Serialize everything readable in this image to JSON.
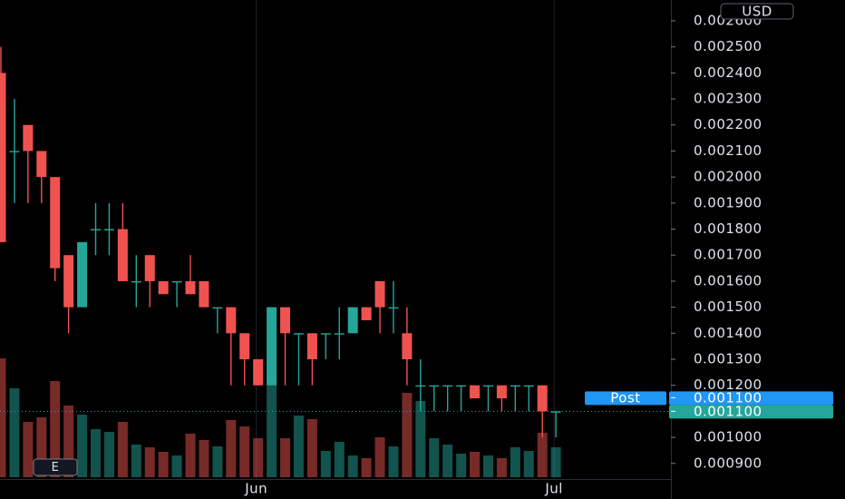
{
  "chart_data": {
    "type": "candlestick",
    "currency": "USD",
    "button": "E",
    "up_color": "#26a69a",
    "down_color": "#ef5350",
    "categories": [
      null,
      null,
      null,
      null,
      null,
      null,
      null,
      null,
      null,
      null,
      null,
      null,
      null,
      null,
      null,
      null,
      null,
      null,
      null,
      "Jun",
      null,
      null,
      null,
      null,
      null,
      null,
      null,
      null,
      null,
      null,
      null,
      null,
      null,
      null,
      null,
      null,
      null,
      null,
      null,
      null,
      null,
      "Jul"
    ],
    "open": [
      0.0024,
      0.0021,
      0.0022,
      0.0021,
      0.002,
      0.0017,
      0.0015,
      0.0018,
      0.0018,
      0.0018,
      0.0016,
      0.0017,
      0.0016,
      0.0016,
      0.0016,
      0.0016,
      0.0015,
      0.0015,
      0.0014,
      0.0013,
      0.0012,
      0.0015,
      0.0014,
      0.0014,
      0.0014,
      0.0014,
      0.0014,
      0.0015,
      0.0016,
      0.0015,
      0.0014,
      0.0012,
      0.0012,
      0.0012,
      0.0012,
      0.0012,
      0.0012,
      0.0012,
      0.0012,
      0.0012,
      0.0012,
      0.0011
    ],
    "high": [
      0.0025,
      0.0023,
      0.0022,
      0.0021,
      0.002,
      0.0017,
      0.00175,
      0.0019,
      0.0019,
      0.0019,
      0.0017,
      0.0017,
      0.0016,
      0.0016,
      0.0017,
      0.0016,
      0.0015,
      0.0015,
      0.0014,
      0.0013,
      0.0015,
      0.0015,
      0.0014,
      0.0014,
      0.0014,
      0.0015,
      0.0015,
      0.0015,
      0.0016,
      0.0016,
      0.0015,
      0.0013,
      0.0012,
      0.0012,
      0.0012,
      0.0012,
      0.0012,
      0.0012,
      0.0012,
      0.0012,
      0.0012,
      0.0011
    ],
    "low": [
      0.00175,
      0.0019,
      0.0019,
      0.0019,
      0.0016,
      0.0014,
      0.0015,
      0.0017,
      0.0017,
      0.0016,
      0.0015,
      0.0015,
      0.00155,
      0.0015,
      0.00155,
      0.0015,
      0.0014,
      0.0012,
      0.0012,
      0.0012,
      0.0012,
      0.0012,
      0.0012,
      0.0012,
      0.0013,
      0.0013,
      0.0014,
      0.00145,
      0.0014,
      0.0014,
      0.0012,
      0.0011,
      0.0011,
      0.0011,
      0.0011,
      0.00115,
      0.0011,
      0.0011,
      0.0011,
      0.0011,
      0.001,
      0.001
    ],
    "close": [
      0.00175,
      0.0021,
      0.0021,
      0.002,
      0.00165,
      0.0015,
      0.00175,
      0.0018,
      0.0018,
      0.0016,
      0.0016,
      0.0016,
      0.00155,
      0.0016,
      0.00155,
      0.0015,
      0.0015,
      0.0014,
      0.0013,
      0.0012,
      0.0015,
      0.0014,
      0.0014,
      0.0013,
      0.0014,
      0.0014,
      0.0015,
      0.00145,
      0.0015,
      0.0015,
      0.0013,
      0.0012,
      0.0012,
      0.0012,
      0.0012,
      0.00115,
      0.0012,
      0.00115,
      0.0012,
      0.0012,
      0.0011,
      0.0011
    ],
    "volume": [
      131,
      98,
      61,
      66,
      106,
      79,
      69,
      53,
      50,
      61,
      36,
      33,
      28,
      24,
      48,
      41,
      34,
      63,
      56,
      43,
      109,
      43,
      68,
      64,
      29,
      39,
      24,
      21,
      44,
      34,
      93,
      84,
      43,
      36,
      26,
      28,
      24,
      21,
      33,
      29,
      49,
      33
    ],
    "volume_lim": [
      0,
      200
    ],
    "ylim": [
      0.00084,
      0.00268
    ],
    "yticks": [
      {
        "value": 0.0009,
        "label": "0.000900"
      },
      {
        "value": 0.001,
        "label": "0.001000"
      },
      {
        "value": 0.0011,
        "label": "0.001100"
      },
      {
        "value": 0.0012,
        "label": "0.001200"
      },
      {
        "value": 0.0013,
        "label": "0.001300"
      },
      {
        "value": 0.0014,
        "label": "0.001400"
      },
      {
        "value": 0.0015,
        "label": "0.001500"
      },
      {
        "value": 0.0016,
        "label": "0.001600"
      },
      {
        "value": 0.0017,
        "label": "0.001700"
      },
      {
        "value": 0.0018,
        "label": "0.001800"
      },
      {
        "value": 0.0019,
        "label": "0.001900"
      },
      {
        "value": 0.002,
        "label": "0.002000"
      },
      {
        "value": 0.0021,
        "label": "0.002100"
      },
      {
        "value": 0.0022,
        "label": "0.002200"
      },
      {
        "value": 0.0023,
        "label": "0.002300"
      },
      {
        "value": 0.0024,
        "label": "0.002400"
      },
      {
        "value": 0.0025,
        "label": "0.002500"
      },
      {
        "value": 0.0026,
        "label": "0.002600"
      }
    ],
    "price_lines": [
      {
        "name": "Post",
        "value": 0.0011,
        "value_label": "0.001100",
        "color": "#2196f3"
      },
      {
        "value": 0.0011,
        "value_label": "0.001100",
        "color": "#26a69a"
      }
    ]
  }
}
